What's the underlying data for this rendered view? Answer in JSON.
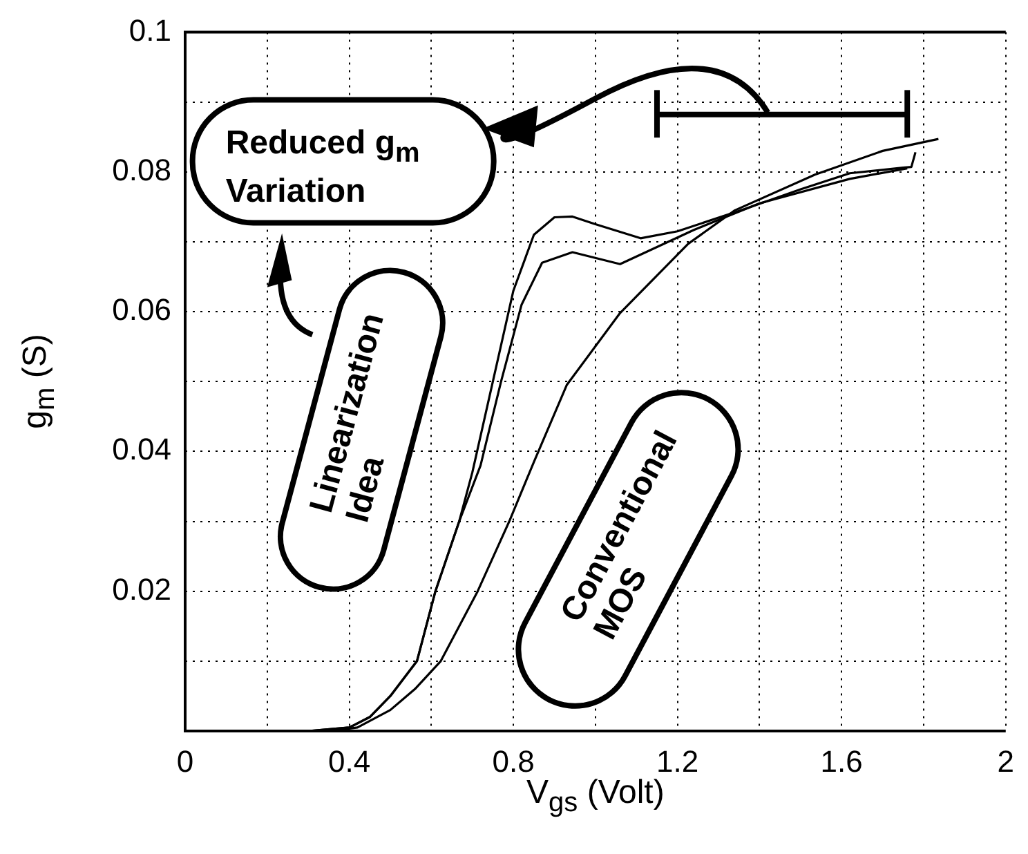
{
  "chart_data": {
    "type": "line",
    "xlabel": "V$_{gs}$ (Volt)",
    "ylabel": "g$_{m}$ (S)",
    "xlim": [
      0,
      2
    ],
    "ylim": [
      0,
      0.1
    ],
    "xticks": [
      0,
      {
        "value": 0.2,
        "label": null
      },
      0.4,
      {
        "value": 0.6,
        "label": null
      },
      0.8,
      {
        "value": 1.0,
        "label": null
      },
      1.2,
      {
        "value": 1.4,
        "label": null
      },
      1.6,
      {
        "value": 1.8,
        "label": null
      },
      2
    ],
    "yticks": [
      {
        "value": 0,
        "label": null
      },
      {
        "value": 0.01,
        "label": null
      },
      0.02,
      {
        "value": 0.03,
        "label": null
      },
      0.04,
      {
        "value": 0.05,
        "label": null
      },
      0.06,
      {
        "value": 0.07,
        "label": null
      },
      0.08,
      {
        "value": 0.09,
        "label": null
      },
      0.1
    ],
    "grid": true,
    "legend": false,
    "marker": "none",
    "line_style": "solid",
    "series": [
      {
        "color": "#000000",
        "x": [
          0.3,
          0.4,
          0.45,
          0.5,
          0.565,
          0.61,
          0.668,
          0.7,
          0.75,
          0.8,
          0.85,
          0.9,
          0.944,
          1.0,
          1.11,
          1.2,
          1.37,
          1.5,
          1.62,
          1.75,
          1.77,
          1.78
        ],
        "values": [
          0,
          0.0005,
          0.002,
          0.005,
          0.01,
          0.02,
          0.03,
          0.037,
          0.05,
          0.063,
          0.071,
          0.0735,
          0.0736,
          0.0725,
          0.0705,
          0.0715,
          0.0748,
          0.0775,
          0.0798,
          0.0806,
          0.0807,
          0.0828
        ]
      },
      {
        "color": "#000000",
        "x": [
          0.3,
          0.4,
          0.45,
          0.5,
          0.565,
          0.61,
          0.668,
          0.72,
          0.77,
          0.82,
          0.87,
          0.944,
          1.06,
          1.24,
          1.4,
          1.62,
          1.76
        ],
        "values": [
          0,
          0.0005,
          0.002,
          0.005,
          0.01,
          0.02,
          0.03,
          0.038,
          0.05,
          0.061,
          0.067,
          0.0685,
          0.0668,
          0.0717,
          0.0755,
          0.079,
          0.0805
        ]
      },
      {
        "color": "#000000",
        "x": [
          0.35,
          0.42,
          0.5,
          0.56,
          0.623,
          0.713,
          0.79,
          0.85,
          0.93,
          1.06,
          1.226,
          1.34,
          1.535,
          1.7,
          1.836
        ],
        "values": [
          0,
          0.0005,
          0.003,
          0.006,
          0.01,
          0.02,
          0.03,
          0.0385,
          0.0495,
          0.0598,
          0.0697,
          0.0745,
          0.0796,
          0.083,
          0.0847
        ]
      }
    ],
    "annotations": [
      "Reduced g$_{m}$ Variation",
      "Linearization Idea",
      "Conventional MOS"
    ]
  }
}
